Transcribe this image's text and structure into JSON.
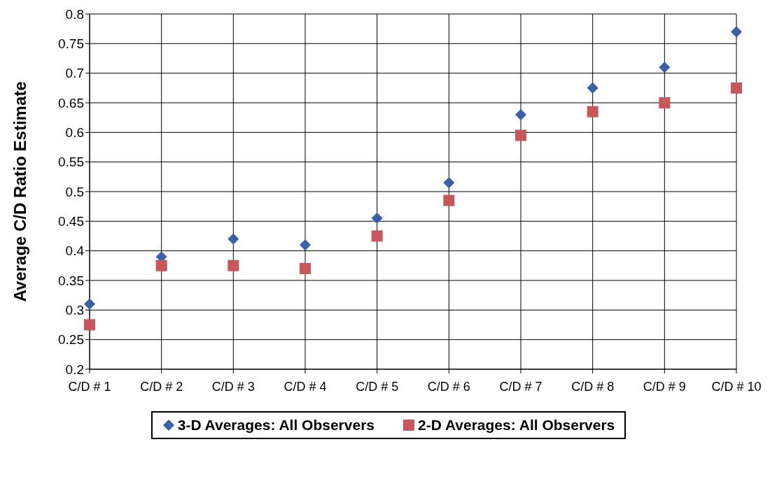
{
  "chart_data": {
    "type": "scatter",
    "ylabel": "Average C/D Ratio Estimate",
    "categories": [
      "C/D # 1",
      "C/D # 2",
      "C/D # 3",
      "C/D # 4",
      "C/D # 5",
      "C/D # 6",
      "C/D # 7",
      "C/D # 8",
      "C/D # 9",
      "C/D # 10"
    ],
    "series": [
      {
        "name": "3-D Averages: All Observers",
        "color": "#3561ad",
        "marker": "diamond",
        "values": [
          0.31,
          0.39,
          0.42,
          0.41,
          0.455,
          0.515,
          0.63,
          0.675,
          0.71,
          0.77
        ]
      },
      {
        "name": "2-D Averages: All Observers",
        "color": "#c9575a",
        "marker": "square",
        "values": [
          0.275,
          0.375,
          0.375,
          0.37,
          0.425,
          0.485,
          0.595,
          0.635,
          0.65,
          0.675
        ]
      }
    ],
    "ylim": [
      0.2,
      0.8
    ],
    "yticks": [
      0.2,
      0.25,
      0.3,
      0.35,
      0.4,
      0.45,
      0.5,
      0.55,
      0.6,
      0.65,
      0.7,
      0.75,
      0.8
    ],
    "grid": true,
    "legend": "bottom"
  }
}
